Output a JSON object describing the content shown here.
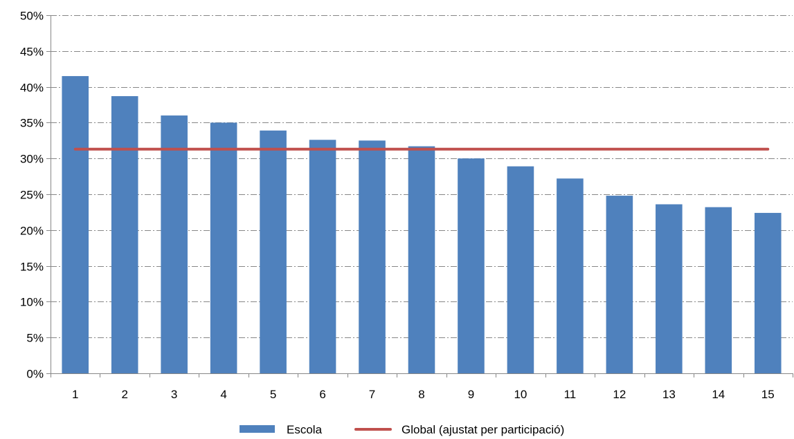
{
  "chart_data": {
    "type": "bar",
    "categories": [
      "1",
      "2",
      "3",
      "4",
      "5",
      "6",
      "7",
      "8",
      "9",
      "10",
      "11",
      "12",
      "13",
      "14",
      "15"
    ],
    "series": [
      {
        "name": "Escola",
        "type": "bar",
        "color": "#4F81BD",
        "values": [
          41.5,
          38.7,
          36.0,
          35.0,
          33.9,
          32.6,
          32.5,
          31.7,
          30.0,
          28.9,
          27.2,
          24.8,
          23.6,
          23.2,
          22.4
        ]
      },
      {
        "name": "Global (ajustat per participació)",
        "type": "line",
        "color": "#C0504D",
        "value": 31.3
      }
    ],
    "ylim": [
      0,
      50
    ],
    "yticks": [
      {
        "value": 0,
        "label": "0%"
      },
      {
        "value": 5,
        "label": "5%"
      },
      {
        "value": 10,
        "label": "10%"
      },
      {
        "value": 15,
        "label": "15%"
      },
      {
        "value": 20,
        "label": "20%"
      },
      {
        "value": 25,
        "label": "25%"
      },
      {
        "value": 30,
        "label": "30%"
      },
      {
        "value": 35,
        "label": "35%"
      },
      {
        "value": 40,
        "label": "40%"
      },
      {
        "value": 45,
        "label": "45%"
      },
      {
        "value": 50,
        "label": "50%"
      }
    ],
    "gridlines": "horizontal dash-dot",
    "grid_color": "#868686",
    "axis_color": "#868686",
    "legend_position": "bottom"
  }
}
